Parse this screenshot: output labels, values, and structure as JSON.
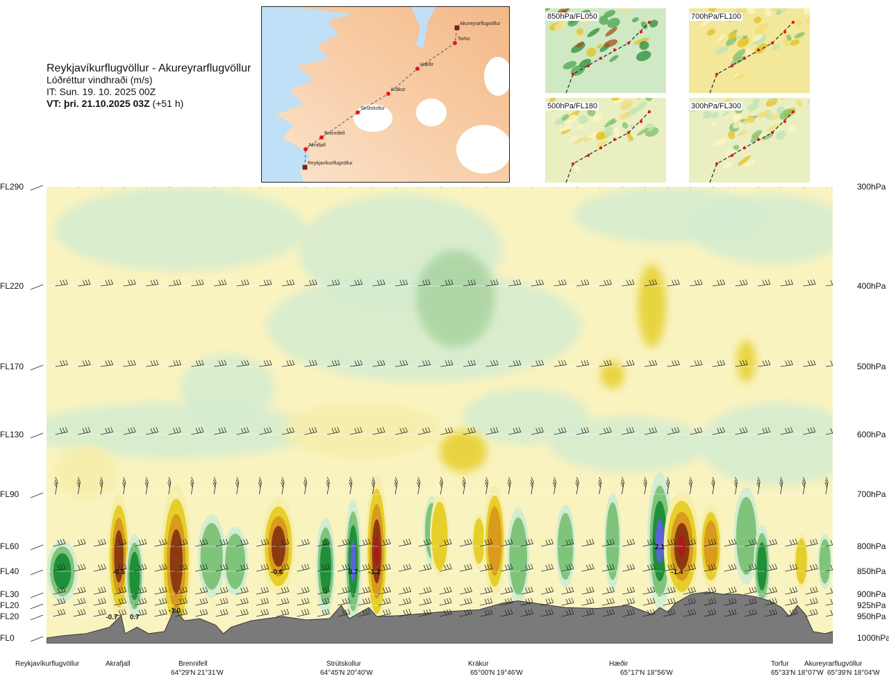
{
  "header": {
    "route": "Reykjavíkurflugvöllur - Akureyrarflugvöllur",
    "parameter": "Lóðréttur vindhraði (m/s)",
    "issue_time": "IT: Sun. 19. 10. 2025 00Z",
    "valid_prefix": "VT: þri. 21.10.2025 03Z",
    "valid_suffix": " (+51 h)"
  },
  "route_map": {
    "points": [
      {
        "name": "Akureyrarflugvöllur",
        "kind": "airport"
      },
      {
        "name": "Torfur",
        "kind": "waypoint"
      },
      {
        "name": "Hæðir",
        "kind": "waypoint"
      },
      {
        "name": "Krákur",
        "kind": "waypoint"
      },
      {
        "name": "Strútskollur",
        "kind": "waypoint"
      },
      {
        "name": "Brennifell",
        "kind": "waypoint"
      },
      {
        "name": "Akrafjall",
        "kind": "waypoint"
      },
      {
        "name": "Reykjavíkurflugvöllur",
        "kind": "airport"
      }
    ]
  },
  "level_panels": [
    {
      "label": "850hPa/FL050"
    },
    {
      "label": "700hPa/FL100"
    },
    {
      "label": "500hPa/FL180"
    },
    {
      "label": "300hPa/FL300"
    }
  ],
  "chart_data": {
    "type": "heatmap",
    "title": "Lóðréttur vindhraði (m/s)",
    "left_axis_labels": [
      "FL290",
      "FL220",
      "FL170",
      "FL130",
      "FL90",
      "FL60",
      "FL40",
      "FL30",
      "FL20",
      "FL20",
      "FL0"
    ],
    "right_axis_labels": [
      "300hPa",
      "400hPa",
      "500hPa",
      "600hPa",
      "700hPa",
      "800hPa",
      "850hPa",
      "900hPa",
      "925hPa",
      "950hPa",
      "1000hPa"
    ],
    "pressure_levels_hpa": [
      300,
      400,
      500,
      600,
      700,
      800,
      850,
      900,
      925,
      950,
      1000
    ],
    "waypoints": [
      {
        "name": "Reykjavíkurflugvöllur",
        "coord": "",
        "pos": 0.0
      },
      {
        "name": "Akrafjall",
        "coord": "",
        "pos": 0.09
      },
      {
        "name": "Brennifell",
        "coord": "64°29'N 21°31'W",
        "pos": 0.185
      },
      {
        "name": "Strútskollur",
        "coord": "64°45'N 20°40'W",
        "pos": 0.378
      },
      {
        "name": "Krákur",
        "coord": "65°00'N 19°46'W",
        "pos": 0.575
      },
      {
        "name": "Hæðir",
        "coord": "65°17'N 18°56'W",
        "pos": 0.764
      },
      {
        "name": "Torfur",
        "coord": "65°33'N 18°07'W",
        "pos": 0.955
      },
      {
        "name": "Akureyrarflugvöllur",
        "coord": "65°39'N 18°04'W",
        "pos": 1.0
      }
    ],
    "value_labels": [
      {
        "text": "-0.5",
        "pos": 0.092,
        "level_hpa": 850
      },
      {
        "text": "-0.7",
        "pos": 0.083,
        "level_hpa": 950
      },
      {
        "text": "0.7",
        "pos": 0.112,
        "level_hpa": 950
      },
      {
        "text": "-1.0",
        "pos": 0.163,
        "level_hpa": 935
      },
      {
        "text": "-0.6",
        "pos": 0.293,
        "level_hpa": 850
      },
      {
        "text": "0.7",
        "pos": 0.39,
        "level_hpa": 850
      },
      {
        "text": "-1.2",
        "pos": 0.417,
        "level_hpa": 850
      },
      {
        "text": "2.1",
        "pos": 0.78,
        "level_hpa": 800
      },
      {
        "text": "-1.4",
        "pos": 0.802,
        "level_hpa": 850
      }
    ],
    "features": [
      {
        "pos": 0.092,
        "level_hpa": 850,
        "value": -0.5
      },
      {
        "pos": 0.083,
        "level_hpa": 950,
        "value": -0.7
      },
      {
        "pos": 0.112,
        "level_hpa": 950,
        "value": 0.7
      },
      {
        "pos": 0.163,
        "level_hpa": 935,
        "value": -1.0
      },
      {
        "pos": 0.293,
        "level_hpa": 850,
        "value": -0.6
      },
      {
        "pos": 0.39,
        "level_hpa": 850,
        "value": 0.7
      },
      {
        "pos": 0.417,
        "level_hpa": 850,
        "value": -1.2
      },
      {
        "pos": 0.78,
        "level_hpa": 800,
        "value": 2.1
      },
      {
        "pos": 0.802,
        "level_hpa": 850,
        "value": -1.4
      }
    ],
    "colors": {
      "sink_light": "#f6eeaa",
      "sink_mid": "#e6cf2a",
      "sink_strong": "#d99a1e",
      "sink_heavy": "#8c3a10",
      "sink_max": "#b01818",
      "rise_light": "#d4ecd0",
      "rise_mid": "#7fc47a",
      "rise_strong": "#1f8f3a",
      "rise_max": "#5c63d6",
      "terrain": "#7a7a7a"
    },
    "grid": true
  }
}
